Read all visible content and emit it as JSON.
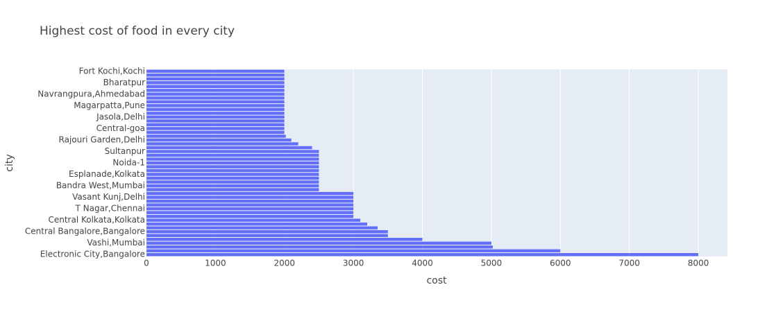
{
  "chart_data": {
    "type": "hbar",
    "title": "Highest cost of food in every city",
    "x_label": "cost",
    "y_label": "city",
    "categories": [
      "Electronic City,Bangalore",
      null,
      null,
      "Vashi,Mumbai",
      null,
      null,
      "Central Bangalore,Bangalore",
      null,
      null,
      "Central Kolkata,Kolkata",
      null,
      null,
      "T Nagar,Chennai",
      null,
      null,
      "Vasant Kunj,Delhi",
      null,
      null,
      "Bandra West,Mumbai",
      null,
      null,
      "Esplanade,Kolkata",
      null,
      null,
      "Noida-1",
      null,
      null,
      "Sultanpur",
      null,
      null,
      "Rajouri Garden,Delhi",
      null,
      null,
      "Central-goa",
      null,
      null,
      "Jasola,Delhi",
      null,
      null,
      "Magarpatta,Pune",
      null,
      null,
      "Navrangpura,Ahmedabad",
      null,
      null,
      "Bharatpur",
      null,
      null,
      "Fort Kochi,Kochi"
    ],
    "values": [
      8000,
      6000,
      5020,
      5000,
      4000,
      3500,
      3500,
      3350,
      3200,
      3100,
      3000,
      3000,
      3000,
      3000,
      3000,
      3000,
      3000,
      2500,
      2500,
      2500,
      2500,
      2500,
      2500,
      2500,
      2500,
      2500,
      2500,
      2500,
      2400,
      2200,
      2100,
      2020,
      2000,
      2000,
      2000,
      2000,
      2000,
      2000,
      2000,
      2000,
      2000,
      2000,
      2000,
      2000,
      2000,
      2000,
      2000,
      2000,
      2000
    ],
    "color": "#636efa",
    "xlim": [
      0,
      8423
    ],
    "xticks": [
      0,
      1000,
      2000,
      3000,
      4000,
      5000,
      6000,
      7000,
      8000
    ],
    "grid": true
  }
}
